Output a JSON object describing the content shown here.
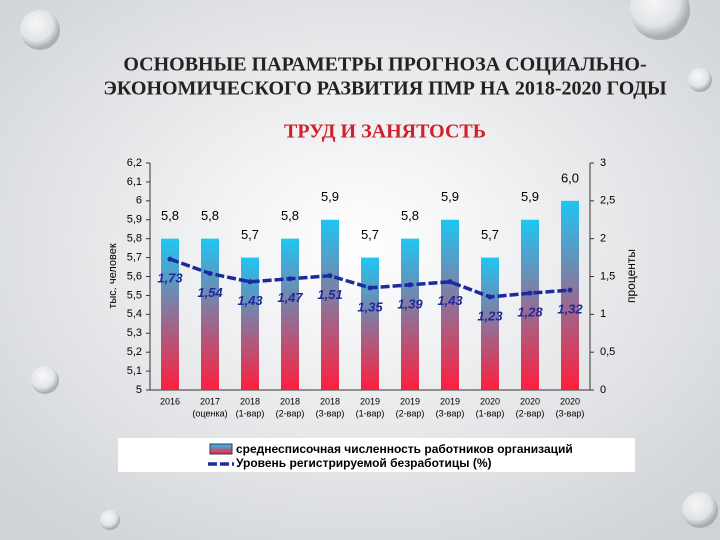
{
  "title": [
    "ОСНОВНЫЕ ПАРАМЕТРЫ ПРОГНОЗА СОЦИАЛЬНО-",
    "ЭКОНОМИЧЕСКОГО РАЗВИТИЯ ПМР НА 2018-2020 ГОДЫ"
  ],
  "subtitle": "ТРУД И ЗАНЯТОСТЬ",
  "chart_data": {
    "type": "bar_line",
    "categories": [
      [
        "2016"
      ],
      [
        "2017",
        "(оценка)"
      ],
      [
        "2018",
        "(1-вар)"
      ],
      [
        "2018",
        "(2-вар)"
      ],
      [
        "2018",
        "(3-вар)"
      ],
      [
        "2019",
        "(1-вар)"
      ],
      [
        "2019",
        "(2-вар)"
      ],
      [
        "2019",
        "(3-вар)"
      ],
      [
        "2020",
        "(1-вар)"
      ],
      [
        "2020",
        "(2-вар)"
      ],
      [
        "2020",
        "(3-вар)"
      ]
    ],
    "series": [
      {
        "name": "среднесписочная численность работников организаций",
        "type": "bar",
        "gradient": [
          "#1fc6f3",
          "#ff1e3c"
        ],
        "values": [
          5.8,
          5.8,
          5.7,
          5.8,
          5.9,
          5.7,
          5.8,
          5.9,
          5.7,
          5.9,
          6.0
        ],
        "value_labels": [
          "5,8",
          "5,8",
          "5,7",
          "5,8",
          "5,9",
          "5,7",
          "5,8",
          "5,9",
          "5,7",
          "5,9",
          "6,0"
        ]
      },
      {
        "name": "Уровень регистрируемой безработицы (%)",
        "type": "line",
        "axis": "y2",
        "color": "#1c2a9e",
        "values": [
          1.73,
          1.54,
          1.43,
          1.47,
          1.51,
          1.35,
          1.39,
          1.43,
          1.23,
          1.28,
          1.32
        ],
        "value_labels": [
          "1,73",
          "1,54",
          "1,43",
          "1,47",
          "1,51",
          "1,35",
          "1,39",
          "1,43",
          "1,23",
          "1,28",
          "1,32"
        ]
      }
    ],
    "ylabel": "тыс. человек",
    "y2label": "проценты",
    "ylim": [
      5,
      6.2
    ],
    "yticks": [
      5,
      {
        "value": 5.1,
        "label": "5,1"
      },
      {
        "value": 5.2,
        "label": "5,2"
      },
      {
        "value": 5.3,
        "label": "5,3"
      },
      {
        "value": 5.4,
        "label": "5,4"
      },
      {
        "value": 5.5,
        "label": "5,5"
      },
      {
        "value": 5.6,
        "label": "5,6"
      },
      {
        "value": 5.7,
        "label": "5,7"
      },
      {
        "value": 5.8,
        "label": "5,8"
      },
      {
        "value": 5.9,
        "label": "5,9"
      },
      6,
      {
        "value": 6.1,
        "label": "6,1"
      },
      {
        "value": 6.2,
        "label": "6,2"
      }
    ],
    "y2lim": [
      0,
      3
    ],
    "y2ticks": [
      0,
      {
        "value": 0.5,
        "label": "0,5"
      },
      1,
      {
        "value": 1.5,
        "label": "1,5"
      },
      2,
      {
        "value": 2.5,
        "label": "2,5"
      },
      3
    ]
  }
}
